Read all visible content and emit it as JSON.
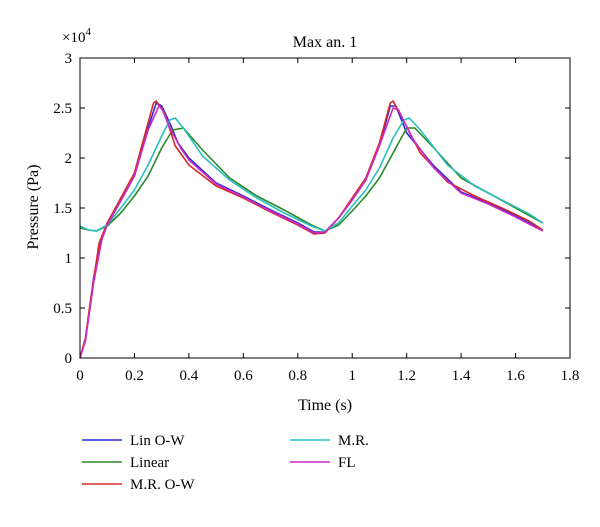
{
  "chart_data": {
    "type": "line",
    "title": "Max an. 1",
    "xlabel": "Time (s)",
    "ylabel": "Pressure (Pa)",
    "y_multiplier": {
      "base": "×10",
      "exponent": "4"
    },
    "xlim": [
      0,
      1.8
    ],
    "ylim": [
      0,
      3
    ],
    "x_ticks": [
      0,
      0.2,
      0.4,
      0.6,
      0.8,
      1,
      1.2,
      1.4,
      1.6,
      1.8
    ],
    "x_tick_labels": [
      "0",
      "0.2",
      "0.4",
      "0.6",
      "0.8",
      "1",
      "1.2",
      "1.4",
      "1.6",
      "1.8"
    ],
    "y_ticks": [
      0,
      0.5,
      1,
      1.5,
      2,
      2.5,
      3
    ],
    "y_tick_labels": [
      "0",
      "0.5",
      "1",
      "1.5",
      "2",
      "2.5",
      "3"
    ],
    "grid": false,
    "legend_position": "below",
    "series": [
      {
        "name": "Lin O-W",
        "color": "#2a2ad6",
        "points": [
          [
            0,
            0
          ],
          [
            0.02,
            0.18
          ],
          [
            0.05,
            0.8
          ],
          [
            0.08,
            1.2
          ],
          [
            0.1,
            1.35
          ],
          [
            0.15,
            1.58
          ],
          [
            0.2,
            1.82
          ],
          [
            0.25,
            2.3
          ],
          [
            0.28,
            2.55
          ],
          [
            0.3,
            2.52
          ],
          [
            0.33,
            2.35
          ],
          [
            0.36,
            2.15
          ],
          [
            0.4,
            2.0
          ],
          [
            0.5,
            1.75
          ],
          [
            0.6,
            1.62
          ],
          [
            0.7,
            1.48
          ],
          [
            0.8,
            1.35
          ],
          [
            0.86,
            1.26
          ],
          [
            0.9,
            1.26
          ],
          [
            0.95,
            1.4
          ],
          [
            1.0,
            1.58
          ],
          [
            1.05,
            1.78
          ],
          [
            1.1,
            2.12
          ],
          [
            1.14,
            2.52
          ],
          [
            1.16,
            2.52
          ],
          [
            1.2,
            2.25
          ],
          [
            1.3,
            1.92
          ],
          [
            1.4,
            1.66
          ],
          [
            1.5,
            1.55
          ],
          [
            1.6,
            1.42
          ],
          [
            1.7,
            1.28
          ]
        ]
      },
      {
        "name": "Linear",
        "color": "#2a8a2a",
        "points": [
          [
            0,
            1.3
          ],
          [
            0.03,
            1.28
          ],
          [
            0.06,
            1.27
          ],
          [
            0.1,
            1.32
          ],
          [
            0.15,
            1.45
          ],
          [
            0.2,
            1.62
          ],
          [
            0.25,
            1.82
          ],
          [
            0.3,
            2.1
          ],
          [
            0.34,
            2.28
          ],
          [
            0.38,
            2.3
          ],
          [
            0.45,
            2.08
          ],
          [
            0.55,
            1.8
          ],
          [
            0.65,
            1.62
          ],
          [
            0.75,
            1.48
          ],
          [
            0.85,
            1.33
          ],
          [
            0.9,
            1.27
          ],
          [
            0.95,
            1.33
          ],
          [
            1.0,
            1.47
          ],
          [
            1.05,
            1.62
          ],
          [
            1.1,
            1.8
          ],
          [
            1.15,
            2.05
          ],
          [
            1.2,
            2.3
          ],
          [
            1.23,
            2.3
          ],
          [
            1.3,
            2.1
          ],
          [
            1.4,
            1.8
          ],
          [
            1.5,
            1.65
          ],
          [
            1.6,
            1.5
          ],
          [
            1.7,
            1.35
          ]
        ]
      },
      {
        "name": "M.R. O-W",
        "color": "#d62a2a",
        "points": [
          [
            0,
            0
          ],
          [
            0.02,
            0.2
          ],
          [
            0.04,
            0.6
          ],
          [
            0.07,
            1.15
          ],
          [
            0.1,
            1.35
          ],
          [
            0.15,
            1.6
          ],
          [
            0.2,
            1.85
          ],
          [
            0.24,
            2.25
          ],
          [
            0.27,
            2.55
          ],
          [
            0.28,
            2.57
          ],
          [
            0.31,
            2.45
          ],
          [
            0.35,
            2.12
          ],
          [
            0.4,
            1.93
          ],
          [
            0.5,
            1.72
          ],
          [
            0.6,
            1.6
          ],
          [
            0.7,
            1.46
          ],
          [
            0.8,
            1.33
          ],
          [
            0.86,
            1.24
          ],
          [
            0.9,
            1.25
          ],
          [
            0.95,
            1.4
          ],
          [
            1.0,
            1.6
          ],
          [
            1.05,
            1.8
          ],
          [
            1.1,
            2.15
          ],
          [
            1.14,
            2.55
          ],
          [
            1.15,
            2.57
          ],
          [
            1.18,
            2.42
          ],
          [
            1.25,
            2.05
          ],
          [
            1.35,
            1.76
          ],
          [
            1.45,
            1.62
          ],
          [
            1.55,
            1.5
          ],
          [
            1.65,
            1.37
          ],
          [
            1.7,
            1.28
          ]
        ]
      },
      {
        "name": "M.R.",
        "color": "#2abfbf",
        "points": [
          [
            0,
            1.32
          ],
          [
            0.03,
            1.28
          ],
          [
            0.06,
            1.27
          ],
          [
            0.1,
            1.33
          ],
          [
            0.15,
            1.5
          ],
          [
            0.2,
            1.68
          ],
          [
            0.25,
            1.93
          ],
          [
            0.3,
            2.22
          ],
          [
            0.33,
            2.38
          ],
          [
            0.35,
            2.4
          ],
          [
            0.38,
            2.3
          ],
          [
            0.45,
            2.02
          ],
          [
            0.55,
            1.78
          ],
          [
            0.65,
            1.6
          ],
          [
            0.75,
            1.45
          ],
          [
            0.85,
            1.32
          ],
          [
            0.9,
            1.27
          ],
          [
            0.95,
            1.35
          ],
          [
            1.0,
            1.52
          ],
          [
            1.05,
            1.68
          ],
          [
            1.1,
            1.9
          ],
          [
            1.15,
            2.2
          ],
          [
            1.19,
            2.38
          ],
          [
            1.21,
            2.4
          ],
          [
            1.25,
            2.28
          ],
          [
            1.35,
            1.93
          ],
          [
            1.45,
            1.72
          ],
          [
            1.55,
            1.58
          ],
          [
            1.65,
            1.44
          ],
          [
            1.7,
            1.35
          ]
        ]
      },
      {
        "name": "FL",
        "color": "#c92ac9",
        "points": [
          [
            0,
            0
          ],
          [
            0.02,
            0.17
          ],
          [
            0.05,
            0.75
          ],
          [
            0.08,
            1.18
          ],
          [
            0.1,
            1.33
          ],
          [
            0.15,
            1.57
          ],
          [
            0.2,
            1.82
          ],
          [
            0.25,
            2.28
          ],
          [
            0.29,
            2.52
          ],
          [
            0.3,
            2.5
          ],
          [
            0.33,
            2.3
          ],
          [
            0.37,
            2.1
          ],
          [
            0.4,
            1.98
          ],
          [
            0.5,
            1.74
          ],
          [
            0.6,
            1.61
          ],
          [
            0.7,
            1.47
          ],
          [
            0.8,
            1.34
          ],
          [
            0.86,
            1.25
          ],
          [
            0.9,
            1.26
          ],
          [
            0.95,
            1.4
          ],
          [
            1.0,
            1.58
          ],
          [
            1.05,
            1.78
          ],
          [
            1.1,
            2.12
          ],
          [
            1.15,
            2.5
          ],
          [
            1.17,
            2.48
          ],
          [
            1.22,
            2.2
          ],
          [
            1.3,
            1.9
          ],
          [
            1.4,
            1.65
          ],
          [
            1.5,
            1.54
          ],
          [
            1.6,
            1.41
          ],
          [
            1.7,
            1.27
          ]
        ]
      }
    ]
  }
}
